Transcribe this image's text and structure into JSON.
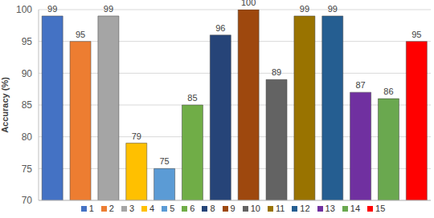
{
  "chart_data": {
    "type": "bar",
    "y_label": "Accuracy (%)",
    "categories": [
      "1",
      "2",
      "3",
      "4",
      "5",
      "6",
      "8",
      "9",
      "10",
      "11",
      "12",
      "13",
      "14",
      "15"
    ],
    "values": [
      99,
      95,
      99,
      79,
      75,
      85,
      96,
      100,
      89,
      99,
      99,
      87,
      86,
      95
    ],
    "colors": [
      "#4472c4",
      "#ed7d31",
      "#a5a5a5",
      "#ffc000",
      "#5b9bd5",
      "#70ad47",
      "#264478",
      "#9e480e",
      "#636363",
      "#997300",
      "#255e91",
      "#7030a0",
      "#6aa84f",
      "#ff0000"
    ],
    "ylim": [
      70,
      100
    ],
    "yticks": [
      70,
      75,
      80,
      85,
      90,
      95,
      100
    ],
    "grid": true,
    "data_labels": true,
    "legend": "bottom"
  }
}
